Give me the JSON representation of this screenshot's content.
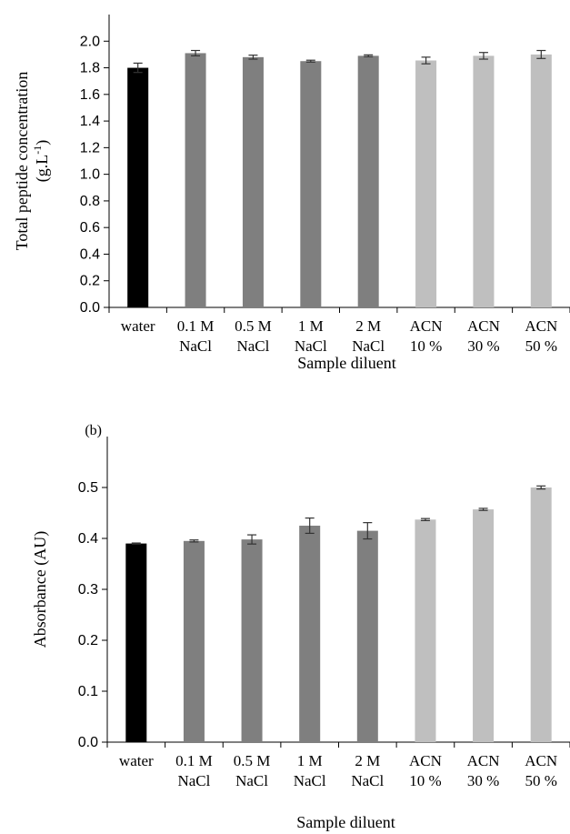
{
  "chart_data": [
    {
      "type": "bar",
      "panel_label": "",
      "categories": [
        [
          "water"
        ],
        [
          "0.1 M",
          "NaCl"
        ],
        [
          "0.5 M",
          "NaCl"
        ],
        [
          "1 M",
          "NaCl"
        ],
        [
          "2 M",
          "NaCl"
        ],
        [
          "ACN",
          "10 %"
        ],
        [
          "ACN",
          "30 %"
        ],
        [
          "ACN",
          "50 %"
        ]
      ],
      "values": [
        1.8,
        1.91,
        1.88,
        1.85,
        1.89,
        1.855,
        1.89,
        1.9
      ],
      "errors": [
        0.035,
        0.02,
        0.015,
        0.007,
        0.007,
        0.025,
        0.025,
        0.03
      ],
      "bar_colors": [
        "#000000",
        "#7f7f7f",
        "#7f7f7f",
        "#7f7f7f",
        "#7f7f7f",
        "#bfbfbf",
        "#bfbfbf",
        "#bfbfbf"
      ],
      "xlabel": "Sample diluent",
      "ylabel": [
        "Total peptide concentration",
        "(g.L",
        "-1",
        ")"
      ],
      "yticks": [
        "0.0",
        "0.2",
        "0.4",
        "0.6",
        "0.8",
        "1.0",
        "1.2",
        "1.4",
        "1.6",
        "1.8",
        "2.0"
      ],
      "ylim": [
        0,
        2.2
      ],
      "grid": false
    },
    {
      "type": "bar",
      "panel_label": "(b)",
      "categories": [
        [
          "water"
        ],
        [
          "0.1 M",
          "NaCl"
        ],
        [
          "0.5 M",
          "NaCl"
        ],
        [
          "1 M",
          "NaCl"
        ],
        [
          "2 M",
          "NaCl"
        ],
        [
          "ACN",
          "10 %"
        ],
        [
          "ACN",
          "30 %"
        ],
        [
          "ACN",
          "50 %"
        ]
      ],
      "values": [
        0.39,
        0.395,
        0.398,
        0.425,
        0.415,
        0.437,
        0.457,
        0.5
      ],
      "errors": [
        0.001,
        0.002,
        0.009,
        0.015,
        0.016,
        0.002,
        0.002,
        0.003
      ],
      "bar_colors": [
        "#000000",
        "#7f7f7f",
        "#7f7f7f",
        "#7f7f7f",
        "#7f7f7f",
        "#bfbfbf",
        "#bfbfbf",
        "#bfbfbf"
      ],
      "xlabel": "Sample diluent",
      "ylabel": [
        "Absorbance (AU)"
      ],
      "yticks": [
        "0.0",
        "0.1",
        "0.2",
        "0.3",
        "0.4",
        "0.5"
      ],
      "ylim": [
        0,
        0.6
      ],
      "grid": false
    }
  ]
}
